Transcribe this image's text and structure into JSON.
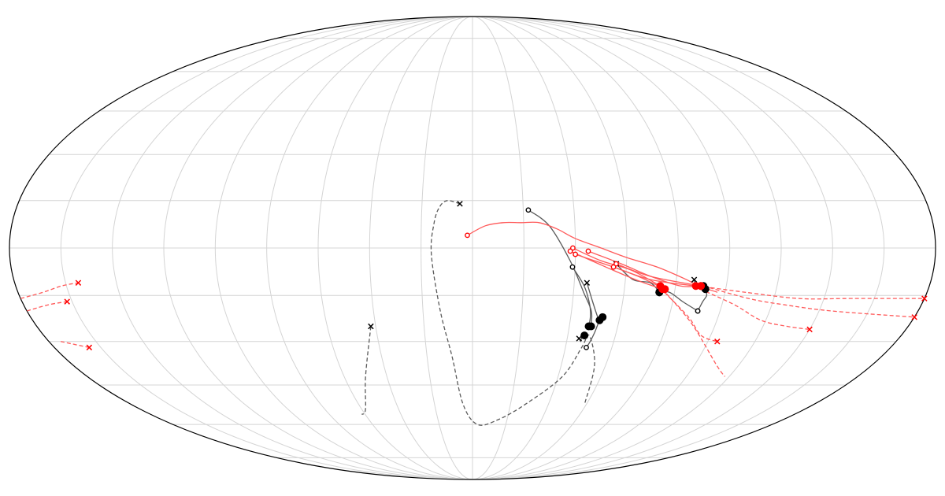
{
  "chart_data": {
    "type": "scatter",
    "projection": "mollweide",
    "graticule": {
      "meridian_step_deg": 20,
      "parallel_step_deg": 15
    },
    "title": "",
    "xlabel": "",
    "ylabel": "",
    "grid": true,
    "legend": "none",
    "colors": {
      "black_group": "#000000",
      "red_group": "#ff0000",
      "grid": "#d4d4d4"
    },
    "trajectories": [
      {
        "color": "black",
        "style": "dashed",
        "start_marker": "x",
        "end_marker": "none",
        "lonlat": [
          [
            -5,
            14
          ],
          [
            -10,
            15
          ],
          [
            -13,
            13
          ],
          [
            -15,
            8
          ],
          [
            -16,
            -2
          ],
          [
            -13,
            -20
          ],
          [
            -9,
            -35
          ],
          [
            -5,
            -52
          ],
          [
            3,
            -60
          ],
          [
            15,
            -58
          ],
          [
            28,
            -52
          ],
          [
            42,
            -42
          ],
          [
            47,
            -32
          ],
          [
            49,
            -28
          ],
          [
            55,
            -38
          ],
          [
            59,
            -52
          ]
        ]
      },
      {
        "color": "black",
        "style": "dashed",
        "start_marker": "x",
        "end_marker": "none",
        "lonlat": [
          [
            -42,
            -25
          ],
          [
            -50,
            -42
          ],
          [
            -58,
            -54
          ],
          [
            -62,
            -56
          ]
        ]
      },
      {
        "color": "black",
        "style": "solid",
        "start_marker": "o",
        "end_marker": "dot",
        "lonlat": [
          [
            22,
            12
          ],
          [
            30,
            7
          ],
          [
            38,
            -4
          ],
          [
            44,
            -14
          ],
          [
            48,
            -20
          ],
          [
            49,
            -25
          ]
        ]
      },
      {
        "color": "black",
        "style": "solid",
        "start_marker": "o",
        "end_marker": "dot",
        "lonlat": [
          [
            39,
            -6
          ],
          [
            44,
            -12
          ],
          [
            47,
            -18
          ],
          [
            48,
            -22
          ],
          [
            48,
            -25
          ]
        ]
      },
      {
        "color": "black",
        "style": "solid",
        "start_marker": "o",
        "end_marker": "dot",
        "lonlat": [
          [
            49,
            -32
          ],
          [
            50,
            -30
          ],
          [
            51,
            -27
          ],
          [
            52,
            -23
          ],
          [
            53,
            -22
          ]
        ]
      },
      {
        "color": "black",
        "style": "solid",
        "start_marker": "x",
        "end_marker": "dot",
        "lonlat": [
          [
            45,
            -29
          ],
          [
            46,
            -30
          ],
          [
            46,
            -29
          ],
          [
            47,
            -28
          ]
        ]
      },
      {
        "color": "black",
        "style": "solid",
        "start_marker": "x",
        "end_marker": "dot",
        "lonlat": [
          [
            45,
            -11
          ],
          [
            48,
            -17
          ],
          [
            51,
            -22
          ],
          [
            52,
            -23
          ]
        ]
      },
      {
        "color": "black",
        "style": "solid",
        "start_marker": "x",
        "end_marker": "dot",
        "lonlat": [
          [
            56,
            -5
          ],
          [
            63,
            -10
          ],
          [
            70,
            -11
          ],
          [
            74,
            -14
          ]
        ]
      },
      {
        "color": "black",
        "style": "solid",
        "start_marker": "x",
        "end_marker": "dot",
        "lonlat": [
          [
            87,
            -10
          ],
          [
            88,
            -12
          ],
          [
            91,
            -12
          ]
        ]
      },
      {
        "color": "black",
        "style": "solid",
        "start_marker": "o",
        "end_marker": "dot",
        "lonlat": [
          [
            91,
            -20
          ],
          [
            92,
            -17
          ],
          [
            93,
            -15
          ],
          [
            92,
            -13
          ]
        ]
      },
      {
        "color": "black",
        "style": "solid",
        "start_marker": "o",
        "end_marker": "dot",
        "lonlat": [
          [
            91,
            -20
          ],
          [
            84,
            -17
          ],
          [
            78,
            -14
          ],
          [
            74,
            -14
          ]
        ]
      },
      {
        "color": "red",
        "style": "solid",
        "start_marker": "o",
        "end_marker": "none",
        "lonlat": [
          [
            -2,
            4
          ],
          [
            5,
            7
          ],
          [
            12,
            8
          ],
          [
            19,
            8
          ],
          [
            26,
            8
          ],
          [
            33,
            6
          ],
          [
            40,
            3
          ],
          [
            50,
            0
          ],
          [
            60,
            -3
          ],
          [
            72,
            -6
          ],
          [
            84,
            -10
          ],
          [
            89,
            -12
          ],
          [
            97,
            -14
          ]
        ]
      },
      {
        "color": "red",
        "style": "solid",
        "start_marker": "o",
        "end_marker": "dot",
        "lonlat": [
          [
            39,
            0
          ],
          [
            50,
            -4
          ],
          [
            62,
            -7
          ],
          [
            74,
            -12
          ]
        ]
      },
      {
        "color": "red",
        "style": "solid",
        "start_marker": "o",
        "end_marker": "dot",
        "lonlat": [
          [
            38,
            -1
          ],
          [
            52,
            -6
          ],
          [
            64,
            -10
          ],
          [
            75,
            -13
          ]
        ]
      },
      {
        "color": "red",
        "style": "solid",
        "start_marker": "o",
        "end_marker": "dot",
        "lonlat": [
          [
            45,
            -1
          ],
          [
            58,
            -5
          ],
          [
            70,
            -9
          ],
          [
            82,
            -12
          ],
          [
            90,
            -12
          ]
        ]
      },
      {
        "color": "red",
        "style": "solid",
        "start_marker": "o",
        "end_marker": "dot",
        "lonlat": [
          [
            40,
            -2
          ],
          [
            55,
            -6
          ],
          [
            70,
            -10
          ],
          [
            88,
            -12
          ]
        ]
      },
      {
        "color": "red",
        "style": "solid",
        "start_marker": "o",
        "end_marker": "dot",
        "lonlat": [
          [
            56,
            -5
          ],
          [
            70,
            -9
          ],
          [
            90,
            -12
          ]
        ]
      },
      {
        "color": "red",
        "style": "solid",
        "start_marker": "o",
        "end_marker": "dot",
        "lonlat": [
          [
            55,
            -6
          ],
          [
            65,
            -9
          ],
          [
            76,
            -13
          ]
        ]
      },
      {
        "color": "red",
        "style": "dashed",
        "start_marker": "none",
        "end_marker": "x",
        "lonlat": [
          [
            89,
            -12
          ],
          [
            108,
            -14
          ],
          [
            130,
            -16
          ],
          [
            150,
            -16
          ],
          [
            180,
            -16
          ]
        ]
      },
      {
        "color": "red",
        "style": "dashed",
        "start_marker": "none",
        "end_marker": "x",
        "lonlat": [
          [
            91,
            -12
          ],
          [
            110,
            -16
          ],
          [
            125,
            -18
          ],
          [
            145,
            -20
          ],
          [
            180,
            -22
          ]
        ]
      },
      {
        "color": "red",
        "style": "dashed",
        "start_marker": "none",
        "end_marker": "x",
        "lonlat": [
          [
            90,
            -13
          ],
          [
            105,
            -18
          ],
          [
            118,
            -23
          ],
          [
            130,
            -25
          ],
          [
            140,
            -26
          ]
        ]
      },
      {
        "color": "red",
        "style": "dashed",
        "start_marker": "none",
        "end_marker": "x",
        "lonlat": [
          [
            76,
            -14
          ],
          [
            88,
            -22
          ],
          [
            96,
            -28
          ],
          [
            104,
            -30
          ]
        ]
      },
      {
        "color": "red",
        "style": "dashed",
        "start_marker": "none",
        "end_marker": "none",
        "lonlat": [
          [
            75,
            -13
          ],
          [
            90,
            -24
          ],
          [
            110,
            -38
          ],
          [
            118,
            -42
          ]
        ]
      },
      {
        "color": "red",
        "style": "dashed",
        "start_marker": "none",
        "end_marker": "x",
        "lonlat": [
          [
            -180,
            -16
          ],
          [
            -170,
            -14
          ],
          [
            -162,
            -12
          ],
          [
            -155,
            -11
          ]
        ]
      },
      {
        "color": "red",
        "style": "dashed",
        "start_marker": "none",
        "end_marker": "x",
        "lonlat": [
          [
            -180,
            -20
          ],
          [
            -170,
            -18
          ],
          [
            -162,
            -17
          ]
        ]
      },
      {
        "color": "red",
        "style": "dashed",
        "start_marker": "none",
        "end_marker": "x",
        "lonlat": [
          [
            -175,
            -30
          ],
          [
            -165,
            -32
          ]
        ]
      }
    ]
  }
}
